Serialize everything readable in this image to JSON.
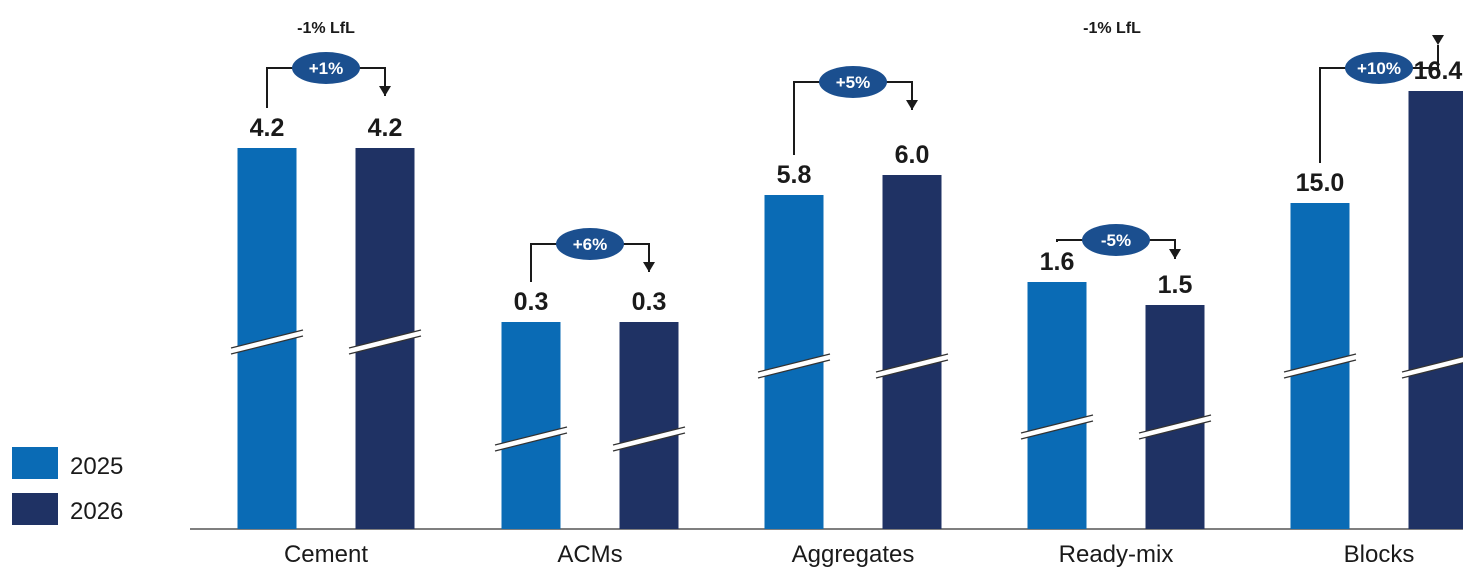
{
  "chart_data": {
    "type": "bar",
    "categories": [
      "Cement",
      "ACMs",
      "Aggregates",
      "Ready-mix",
      "Blocks"
    ],
    "series": [
      {
        "name": "2025",
        "values": [
          4.2,
          0.3,
          5.8,
          1.6,
          15.0
        ],
        "labels": [
          "4.2",
          "0.3",
          "5.8",
          "1.6",
          "15.0"
        ],
        "color": "#0a6bb5"
      },
      {
        "name": "2026",
        "values": [
          4.2,
          0.3,
          6.0,
          1.5,
          16.4
        ],
        "labels": [
          "4.2",
          "0.3",
          "6.0",
          "1.5",
          "16.4"
        ],
        "color": "#1f3264"
      }
    ],
    "changes": [
      "+1%",
      "+6%",
      "+5%",
      "-5%",
      "+10%"
    ],
    "annotations": [
      "-1% LfL",
      "-1% LfL"
    ],
    "axis_break": true,
    "legend_position": "left",
    "colors": {
      "pill": "#1b4f8f",
      "axis": "#555555"
    }
  }
}
